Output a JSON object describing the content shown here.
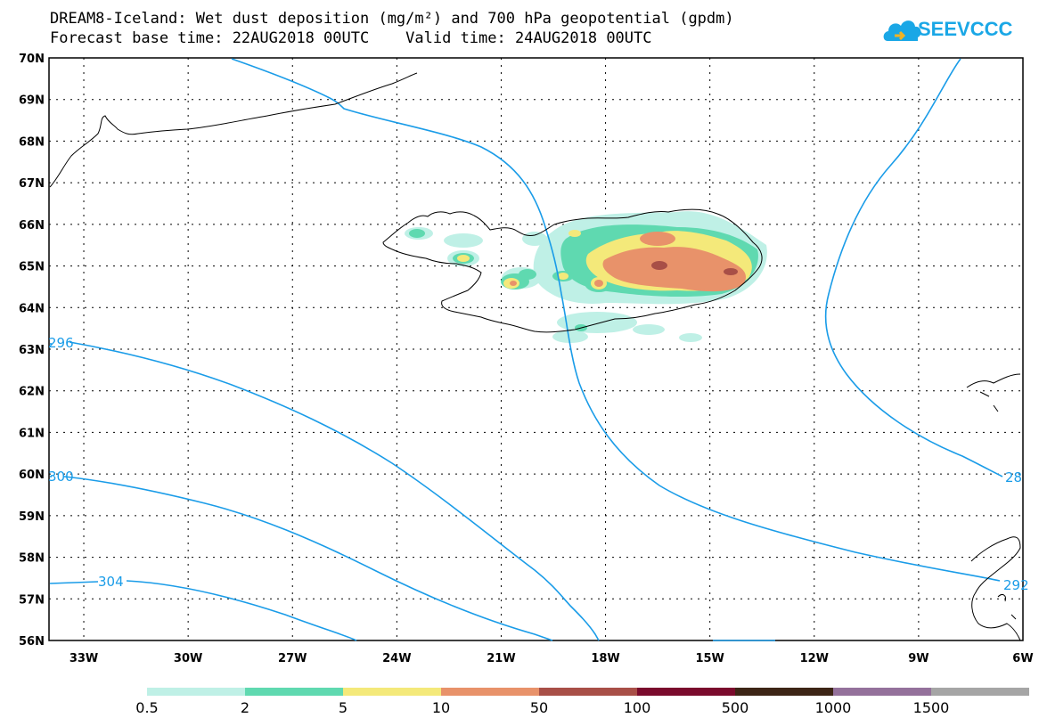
{
  "header": {
    "title": "DREAM8-Iceland: Wet dust deposition (mg/m²) and 700 hPa geopotential (gpdm)",
    "subtitle": "Forecast base time: 22AUG2018 00UTC    Valid time: 24AUG2018 00UTC",
    "logo_text": "SEEVCCC",
    "logo_icon": "cloud-icon"
  },
  "map": {
    "lat_labels": [
      "70N",
      "69N",
      "68N",
      "67N",
      "66N",
      "65N",
      "64N",
      "63N",
      "62N",
      "61N",
      "60N",
      "59N",
      "58N",
      "57N",
      "56N"
    ],
    "lon_labels": [
      "33W",
      "30W",
      "27W",
      "24W",
      "21W",
      "18W",
      "15W",
      "12W",
      "9W",
      "6W"
    ],
    "contour_labels": [
      "296",
      "300",
      "304",
      "28",
      "292"
    ],
    "colors": {
      "contour": "#1a9ce8",
      "coast": "#000000"
    }
  },
  "legend": {
    "labels": [
      "0.5",
      "2",
      "5",
      "10",
      "50",
      "100",
      "500",
      "1000",
      "1500"
    ],
    "colors": [
      "#bff0e6",
      "#5fd9b0",
      "#f4e97a",
      "#e8926a",
      "#a84f47",
      "#7a0a2c",
      "#3d2516",
      "#94719b",
      "#a5a5a5"
    ]
  }
}
